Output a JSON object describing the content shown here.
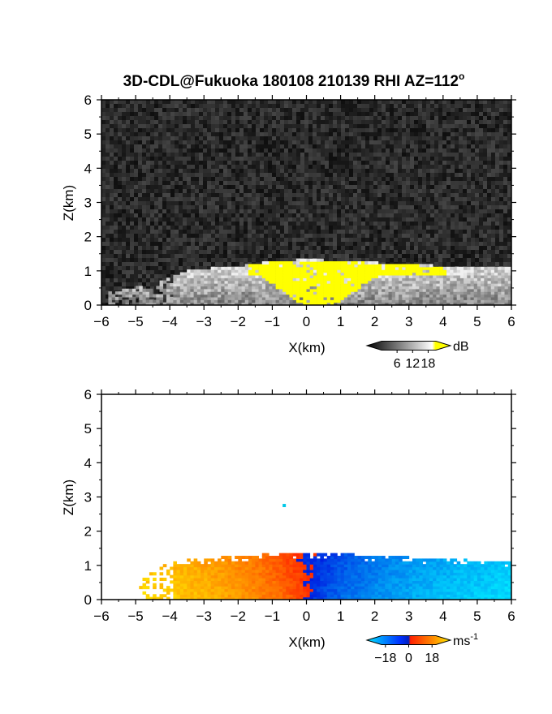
{
  "title": "3D-CDL@Fukuoka 180108 210139 RHI AZ=112",
  "title_superscript": "o",
  "chart_data": [
    {
      "type": "heatmap",
      "name": "reflectivity",
      "xlabel": "X(km)",
      "ylabel": "Z(km)",
      "xlim": [
        -6,
        6
      ],
      "ylim": [
        0,
        6
      ],
      "xticks": [
        "-6",
        "-5",
        "-4",
        "-3",
        "-2",
        "-1",
        "0",
        "1",
        "2",
        "3",
        "4",
        "5",
        "6"
      ],
      "yticks": [
        "0",
        "1",
        "2",
        "3",
        "4",
        "5",
        "6"
      ],
      "colorbar": {
        "unit": "dB",
        "tick_labels": [
          "6",
          "12",
          "18"
        ],
        "tick_values": [
          6,
          12,
          18
        ],
        "range": [
          0,
          21
        ],
        "colors": [
          "#000000",
          "#ffffff",
          "#ffff00"
        ]
      },
      "echo_top_km": [
        {
          "x": -5.5,
          "z": 0.4
        },
        {
          "x": -4.5,
          "z": 0.6
        },
        {
          "x": -3.5,
          "z": 1.0
        },
        {
          "x": -2.0,
          "z": 1.1
        },
        {
          "x": -1.0,
          "z": 1.25
        },
        {
          "x": 0.0,
          "z": 1.3
        },
        {
          "x": 1.0,
          "z": 1.25
        },
        {
          "x": 2.0,
          "z": 1.2
        },
        {
          "x": 3.0,
          "z": 1.15
        },
        {
          "x": 4.0,
          "z": 1.1
        },
        {
          "x": 5.0,
          "z": 1.1
        },
        {
          "x": 6.0,
          "z": 1.1
        }
      ],
      "strong_echo_region": {
        "x_range": [
          -1.8,
          4.0
        ],
        "z_range": [
          0.3,
          1.3
        ],
        "value_dB": 18
      }
    },
    {
      "type": "heatmap",
      "name": "doppler_velocity",
      "xlabel": "X(km)",
      "ylabel": "Z(km)",
      "xlim": [
        -6,
        6
      ],
      "ylim": [
        0,
        6
      ],
      "xticks": [
        "-6",
        "-5",
        "-4",
        "-3",
        "-2",
        "-1",
        "0",
        "1",
        "2",
        "3",
        "4",
        "5",
        "6"
      ],
      "yticks": [
        "0",
        "1",
        "2",
        "3",
        "4",
        "5",
        "6"
      ],
      "colorbar": {
        "unit": "ms",
        "unit_superscript": "-1",
        "tick_labels": [
          "-18",
          "0",
          "18"
        ],
        "tick_values": [
          -18,
          0,
          18
        ],
        "range": [
          -21,
          21
        ],
        "colors": [
          "#00e5ff",
          "#0030ff",
          "#ff2000",
          "#ffee00"
        ]
      },
      "velocity_profile": [
        {
          "x": -4.5,
          "v": 18
        },
        {
          "x": -3.0,
          "v": 15
        },
        {
          "x": -2.0,
          "v": 12
        },
        {
          "x": -1.0,
          "v": 8
        },
        {
          "x": -0.2,
          "v": 3
        },
        {
          "x": 0.2,
          "v": -3
        },
        {
          "x": 1.0,
          "v": -8
        },
        {
          "x": 2.0,
          "v": -12
        },
        {
          "x": 3.0,
          "v": -15
        },
        {
          "x": 4.5,
          "v": -18
        },
        {
          "x": 6.0,
          "v": -20
        }
      ],
      "echo_top_km": [
        {
          "x": -4.8,
          "z": 0.6
        },
        {
          "x": -4.0,
          "z": 1.1
        },
        {
          "x": -2.0,
          "z": 1.25
        },
        {
          "x": -1.0,
          "z": 1.3
        },
        {
          "x": 0.0,
          "z": 1.35
        },
        {
          "x": 1.0,
          "z": 1.3
        },
        {
          "x": 2.0,
          "z": 1.25
        },
        {
          "x": 3.0,
          "z": 1.2
        },
        {
          "x": 4.0,
          "z": 1.15
        },
        {
          "x": 5.0,
          "z": 1.1
        },
        {
          "x": 6.0,
          "z": 1.1
        }
      ],
      "isolated_point": {
        "x": -0.65,
        "z": 2.75
      }
    }
  ]
}
